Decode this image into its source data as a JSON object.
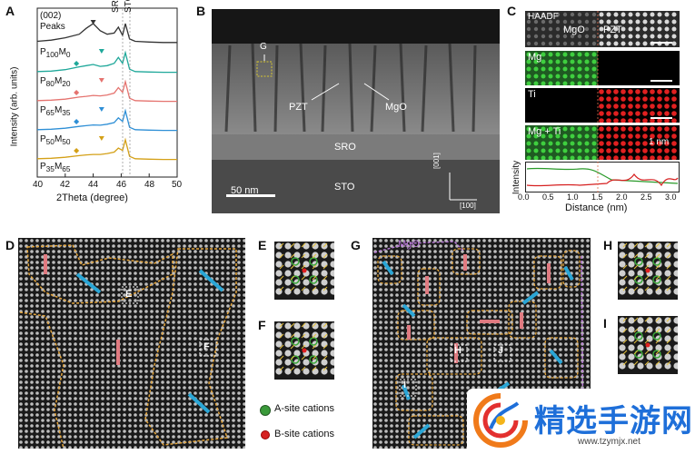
{
  "panel_labels": {
    "a": "A",
    "b": "B",
    "c": "C",
    "d": "D",
    "e": "E",
    "f": "F",
    "g": "G",
    "h": "H",
    "i": "I"
  },
  "panel_a": {
    "header_line1": "(002)",
    "header_line2": "Peaks",
    "ylabel": "Intensity (arb. units)",
    "xlabel": "2Theta (degree)",
    "sro_label": "SRO",
    "sto_label": "STO",
    "xticks": [
      "40",
      "42",
      "44",
      "46",
      "48",
      "50"
    ],
    "samples": [
      {
        "p_sub": "100",
        "m_sub": "0",
        "color": "#333333"
      },
      {
        "p_sub": "80",
        "m_sub": "20",
        "color": "#1fa89a"
      },
      {
        "p_sub": "65",
        "m_sub": "35",
        "color": "#e5736f"
      },
      {
        "p_sub": "50",
        "m_sub": "50",
        "color": "#2e8fd6"
      },
      {
        "p_sub": "35",
        "m_sub": "65",
        "color": "#d4a017"
      }
    ]
  },
  "chart_data": {
    "type": "line",
    "title": "",
    "xlabel": "2Theta (degree)",
    "ylabel": "Intensity (arb. units)",
    "xlim": [
      40,
      50
    ],
    "x": [
      40,
      41,
      42,
      43,
      43.5,
      44,
      44.5,
      45,
      45.5,
      45.8,
      46.1,
      46.3,
      46.6,
      47,
      48,
      49,
      50
    ],
    "series": [
      {
        "name": "P100M0",
        "values": [
          0.25,
          0.3,
          0.4,
          0.55,
          0.8,
          1.0,
          0.7,
          0.55,
          0.6,
          0.85,
          0.5,
          1.0,
          0.35,
          0.25,
          0.22,
          0.2,
          0.2
        ]
      },
      {
        "name": "P80M20",
        "values": [
          0.2,
          0.22,
          0.28,
          0.4,
          0.45,
          0.5,
          0.42,
          0.45,
          0.55,
          0.8,
          0.55,
          1.0,
          0.3,
          0.2,
          0.18,
          0.17,
          0.17
        ]
      },
      {
        "name": "P65M35",
        "values": [
          0.2,
          0.22,
          0.26,
          0.35,
          0.38,
          0.42,
          0.4,
          0.44,
          0.52,
          0.75,
          0.55,
          1.0,
          0.3,
          0.2,
          0.18,
          0.17,
          0.17
        ]
      },
      {
        "name": "P50M50",
        "values": [
          0.2,
          0.22,
          0.26,
          0.34,
          0.37,
          0.4,
          0.39,
          0.43,
          0.5,
          0.7,
          0.55,
          1.0,
          0.3,
          0.2,
          0.18,
          0.17,
          0.17
        ]
      },
      {
        "name": "P35M65",
        "values": [
          0.2,
          0.22,
          0.26,
          0.33,
          0.36,
          0.38,
          0.38,
          0.42,
          0.48,
          0.65,
          0.55,
          1.0,
          0.3,
          0.2,
          0.18,
          0.17,
          0.17
        ]
      }
    ]
  },
  "panel_b": {
    "g_label": "G",
    "pzt_label": "PZT",
    "mgo_label": "MgO",
    "sro_label": "SRO",
    "sto_label": "STO",
    "scale": "50 nm",
    "dir_001": "[001]",
    "dir_100": "[100]"
  },
  "panel_c": {
    "haadf": "HAADF",
    "mgo": "MgO",
    "pzt": "PZT",
    "mg": "Mg",
    "ti": "Ti",
    "mgti": "Mg + Ti",
    "scale": "1 nm",
    "ylabel": "Intensity",
    "xlabel": "Distance (nm)",
    "xticks": [
      "0.0",
      "0.5",
      "1.0",
      "1.5",
      "2.0",
      "2.5",
      "3.0"
    ]
  },
  "panel_d": {
    "box_e": "E",
    "box_f": "F"
  },
  "legend": {
    "a_site": "A-site cations",
    "b_site": "B-site cations"
  },
  "panel_g": {
    "mgo": "MgO",
    "box_h": "H",
    "box_i": "I",
    "box_j": "J"
  },
  "watermark": {
    "title": "精选手游网",
    "url": "www.tzymjx.net"
  }
}
